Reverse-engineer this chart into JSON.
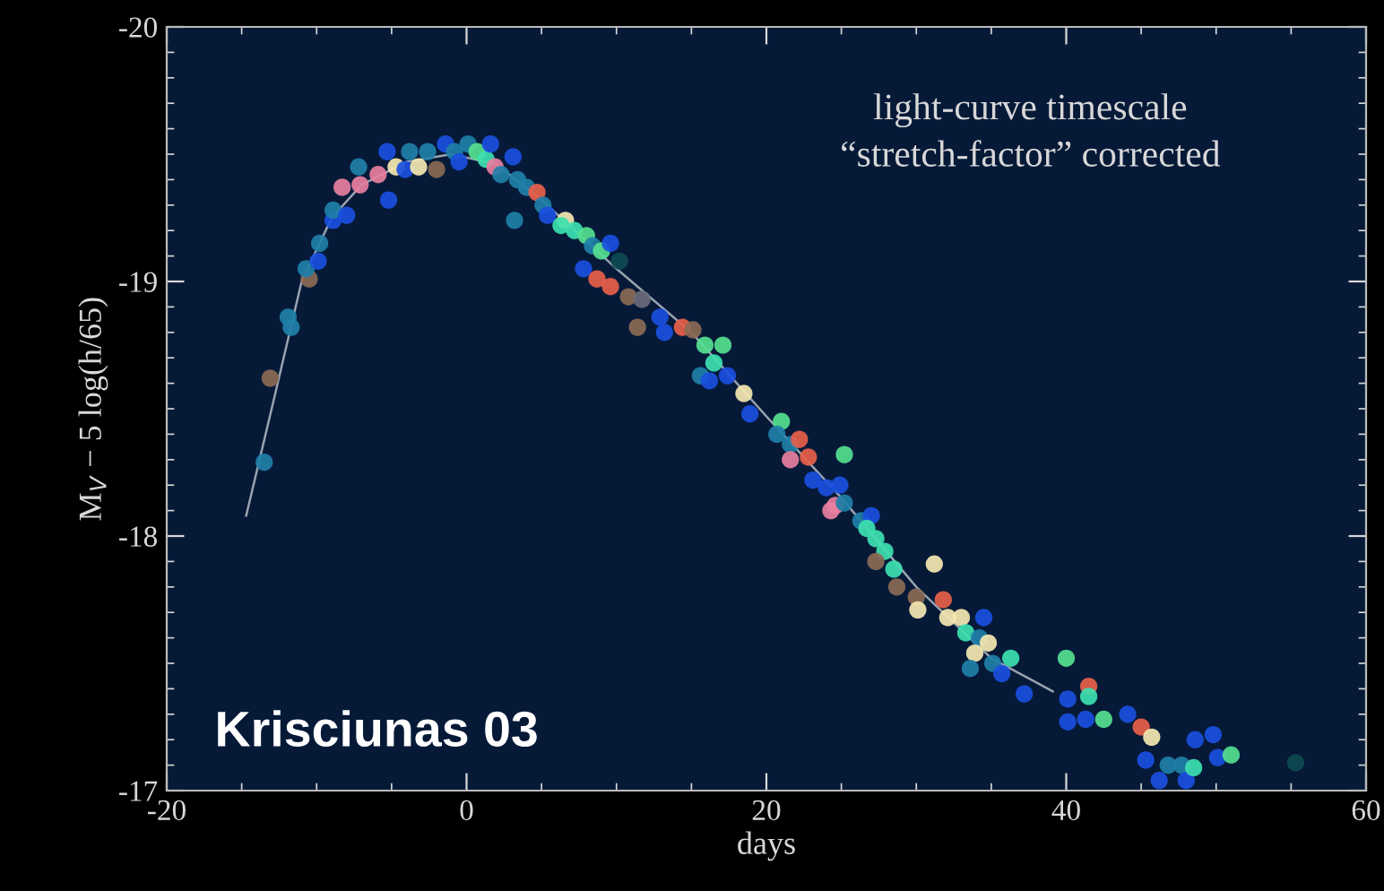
{
  "chart_data": {
    "type": "scatter",
    "xlabel": "days",
    "ylabel": "M$_{V}$ − 5 log(h/65)",
    "xlim": [
      -20,
      60
    ],
    "ylim": [
      -17,
      -20
    ],
    "xticks": [
      -20,
      0,
      20,
      40,
      60
    ],
    "yticks": [
      -20,
      -19,
      -18,
      -17
    ],
    "grid": false,
    "legend": false,
    "marker": "circle",
    "annotations": [
      "light-curve timescale\n“stretch-factor” corrected",
      "Krisciunas 03"
    ],
    "series": [
      {
        "type": "line",
        "marker": "none",
        "color": "#9aa3b0",
        "x": [
          -14.7,
          -13,
          -11,
          -9,
          -7,
          -4,
          -1,
          2,
          5,
          10,
          15,
          20,
          25,
          30,
          35,
          39.1
        ],
        "values": [
          -18.08,
          -18.5,
          -19.0,
          -19.25,
          -19.38,
          -19.47,
          -19.5,
          -19.46,
          -19.32,
          -19.05,
          -18.8,
          -18.47,
          -18.15,
          -17.8,
          -17.52,
          -17.39
        ]
      },
      {
        "x": [
          -13.5,
          -13.1,
          -11.7,
          -11.9,
          -10.5,
          -10.7,
          -9.9,
          -9.8,
          -8.9,
          -8.9,
          -8.0,
          -8.3,
          -7.1,
          -7.2,
          -5.9,
          -5.2,
          -5.3,
          -4.7,
          -4.1,
          -3.8,
          -3.2,
          -2.6,
          -2.0,
          -1.4,
          -0.8,
          -0.5,
          0.1,
          0.7,
          1.3,
          1.6,
          1.9,
          2.3,
          3.1,
          3.4,
          3.2,
          4.0,
          4.7,
          5.1,
          5.4,
          6.6,
          6.3,
          7.2,
          8.0,
          8.4,
          9.0,
          9.6,
          7.8,
          8.7,
          9.6,
          10.2,
          10.8,
          11.7,
          11.4,
          12.9,
          13.2,
          14.4,
          15.1,
          15.9,
          17.1,
          16.5,
          15.6,
          16.2,
          17.4,
          18.5,
          18.9,
          21.0,
          20.7,
          21.6,
          22.2,
          22.8,
          21.6,
          25.2,
          23.1,
          24.0,
          24.9,
          24.6,
          24.3,
          25.2,
          26.3,
          27.0,
          26.7,
          27.3,
          27.9,
          27.3,
          28.5,
          28.7,
          31.2,
          30.0,
          31.8,
          30.1,
          32.1,
          33.0,
          34.5,
          33.3,
          34.2,
          34.8,
          33.9,
          33.6,
          35.1,
          35.7,
          36.3,
          37.2,
          40.0,
          40.1,
          41.5,
          41.5,
          40.1,
          41.3,
          42.5,
          44.1,
          45.0,
          45.7,
          45.3,
          46.2,
          46.8,
          47.7,
          48.0,
          48.5,
          48.6,
          49.8,
          50.1,
          51.0,
          55.3
        ],
        "values": [
          -18.29,
          -18.62,
          -18.82,
          -18.86,
          -19.01,
          -19.05,
          -19.08,
          -19.15,
          -19.24,
          -19.28,
          -19.26,
          -19.37,
          -19.38,
          -19.45,
          -19.42,
          -19.32,
          -19.51,
          -19.45,
          -19.44,
          -19.51,
          -19.45,
          -19.51,
          -19.44,
          -19.54,
          -19.51,
          -19.47,
          -19.54,
          -19.51,
          -19.48,
          -19.54,
          -19.45,
          -19.42,
          -19.49,
          -19.4,
          -19.24,
          -19.37,
          -19.35,
          -19.3,
          -19.26,
          -19.24,
          -19.22,
          -19.2,
          -19.18,
          -19.14,
          -19.12,
          -19.15,
          -19.05,
          -19.01,
          -18.98,
          -19.08,
          -18.94,
          -18.93,
          -18.82,
          -18.86,
          -18.8,
          -18.82,
          -18.81,
          -18.75,
          -18.75,
          -18.68,
          -18.63,
          -18.61,
          -18.63,
          -18.56,
          -18.48,
          -18.45,
          -18.4,
          -18.36,
          -18.38,
          -18.31,
          -18.3,
          -18.32,
          -18.22,
          -18.19,
          -18.2,
          -18.12,
          -18.1,
          -18.13,
          -18.06,
          -18.08,
          -18.03,
          -17.99,
          -17.94,
          -17.9,
          -17.87,
          -17.8,
          -17.89,
          -17.76,
          -17.75,
          -17.71,
          -17.68,
          -17.68,
          -17.68,
          -17.62,
          -17.6,
          -17.58,
          -17.54,
          -17.48,
          -17.5,
          -17.46,
          -17.52,
          -17.38,
          -17.52,
          -17.36,
          -17.41,
          -17.37,
          -17.27,
          -17.28,
          -17.28,
          -17.3,
          -17.25,
          -17.21,
          -17.12,
          -17.04,
          -17.1,
          -17.1,
          -17.04,
          -17.09,
          -17.2,
          -17.22,
          -17.13,
          -17.14,
          -17.11
        ],
        "colors": [
          "#1f7fa8",
          "#8a6a55",
          "#1f7fa8",
          "#1f7fa8",
          "#8a6a55",
          "#1f7fa8",
          "#1a4fe0",
          "#1f7fa8",
          "#1a4fe0",
          "#1f7fa8",
          "#1a4fe0",
          "#e87fa0",
          "#e87fa0",
          "#1f7fa8",
          "#e87fa0",
          "#1a4fe0",
          "#1a4fe0",
          "#f5e7b0",
          "#1a4fe0",
          "#1f7fa8",
          "#f5e7b0",
          "#1f7fa8",
          "#8a6a55",
          "#1a4fe0",
          "#1f7fa8",
          "#1a4fe0",
          "#1f7fa8",
          "#55e090",
          "#3de0b0",
          "#1a4fe0",
          "#e87fa0",
          "#1f7fa8",
          "#1a4fe0",
          "#1f7fa8",
          "#1f7fa8",
          "#1f7fa8",
          "#e8604a",
          "#1f7fa8",
          "#1a4fe0",
          "#f5e7b0",
          "#3de0b0",
          "#3de0b0",
          "#55e090",
          "#1f7fa8",
          "#55e090",
          "#1a4fe0",
          "#1a4fe0",
          "#e8604a",
          "#e8604a",
          "#0e4a50",
          "#8a6a55",
          "#6a6a7a",
          "#8a6a55",
          "#1a4fe0",
          "#1a4fe0",
          "#e8604a",
          "#8a6a55",
          "#55e090",
          "#55e090",
          "#3de0b0",
          "#1f7fa8",
          "#1a4fe0",
          "#1a4fe0",
          "#f5e7b0",
          "#1a4fe0",
          "#55e090",
          "#1f7fa8",
          "#1f7fa8",
          "#e8604a",
          "#e8604a",
          "#e87fa0",
          "#55e090",
          "#1a4fe0",
          "#1a4fe0",
          "#1a4fe0",
          "#e87fa0",
          "#e87fa0",
          "#1f7fa8",
          "#1f7fa8",
          "#1a4fe0",
          "#3de0b0",
          "#3de0b0",
          "#3de0b0",
          "#8a6a55",
          "#3de0b0",
          "#8a6a55",
          "#f5e7b0",
          "#8a6a55",
          "#e8604a",
          "#f5e7b0",
          "#f5e7b0",
          "#f5e7b0",
          "#1a4fe0",
          "#3de0b0",
          "#1f7fa8",
          "#f5e7b0",
          "#f5e7b0",
          "#1f7fa8",
          "#1f7fa8",
          "#1a4fe0",
          "#3de0b0",
          "#1a4fe0",
          "#55e090",
          "#1a4fe0",
          "#e8604a",
          "#3de0b0",
          "#1a4fe0",
          "#1a4fe0",
          "#55e090",
          "#1a4fe0",
          "#e8604a",
          "#f5e7b0",
          "#1a4fe0",
          "#1a4fe0",
          "#1f7fa8",
          "#1f7fa8",
          "#1a4fe0",
          "#3de0b0",
          "#1a4fe0",
          "#1a4fe0",
          "#1a4fe0",
          "#55e090",
          "#0e4a50"
        ]
      }
    ]
  }
}
